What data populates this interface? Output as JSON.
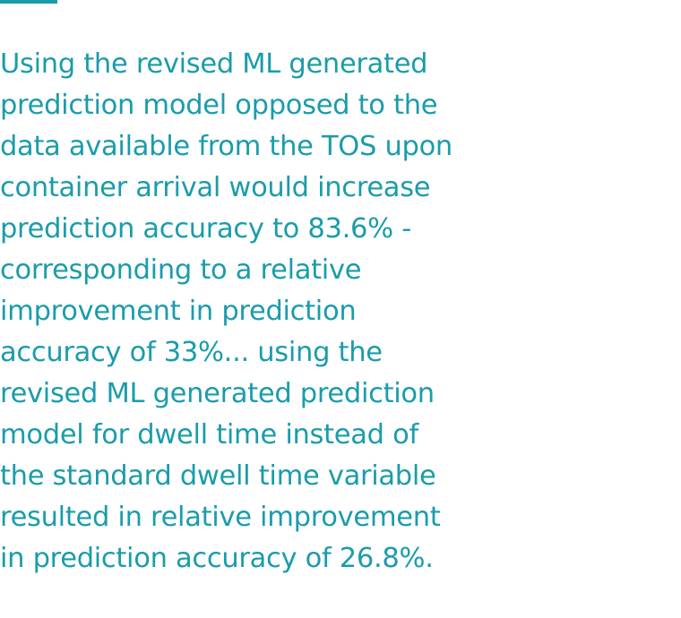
{
  "colors": {
    "accent": "#1a9cab",
    "text": "#1a9cab",
    "background": "#ffffff"
  },
  "quote": {
    "lines": [
      "Using the revised ML generated",
      "prediction model opposed to the",
      "data available from the TOS upon",
      "container arrival would increase",
      "prediction accuracy to 83.6% -",
      "corresponding to a relative",
      "improvement in prediction",
      "accuracy of 33%... using the",
      "revised ML generated prediction",
      "model for dwell time instead of",
      "the standard dwell time variable",
      "resulted in relative improvement",
      "in prediction accuracy of 26.8%."
    ]
  }
}
